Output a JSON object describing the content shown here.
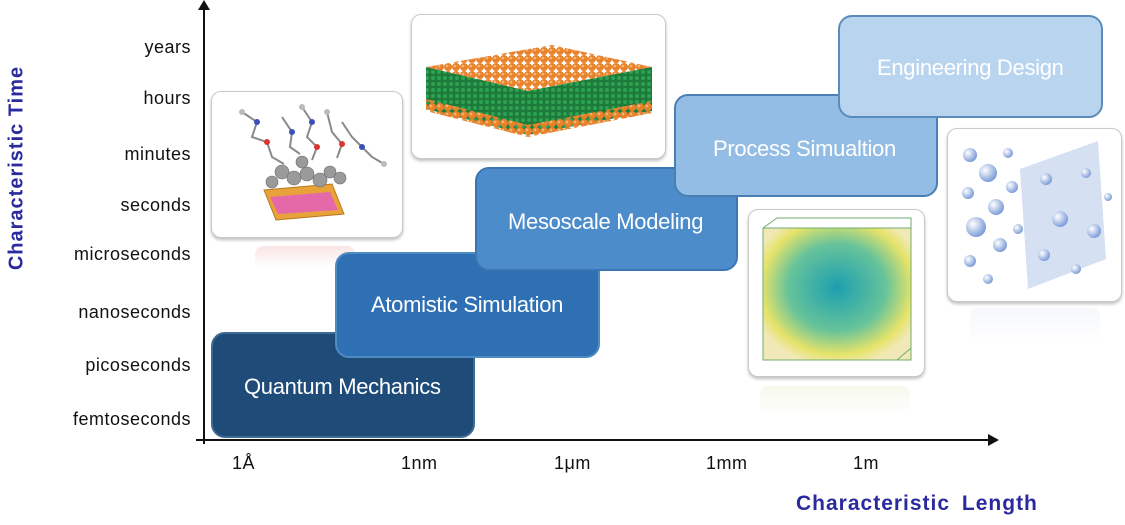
{
  "diagram": {
    "y_axis_title": "Characteristic  Time",
    "x_axis_title": "Characteristic  Length",
    "time_scales": [
      "years",
      "hours",
      "minutes",
      "seconds",
      "microseconds",
      "nanoseconds",
      "picoseconds",
      "femtoseconds"
    ],
    "length_scales": [
      "1Å",
      "1nm",
      "1μm",
      "1mm",
      "1m"
    ],
    "methods": [
      {
        "label": "Quantum Mechanics",
        "color": "#1f4b78"
      },
      {
        "label": "Atomistic Simulation",
        "color": "#2e70b3"
      },
      {
        "label": "Mesoscale Modeling",
        "color": "#4d8ccb"
      },
      {
        "label": "Process Simualtion",
        "color": "#94bde5"
      },
      {
        "label": "Engineering Design",
        "color": "#b9d4ee"
      }
    ],
    "illustrations": [
      "molecule-on-surface",
      "membrane-slab",
      "mesoscale-volume",
      "particle-flow"
    ],
    "title_color": "#2a2a9e"
  }
}
